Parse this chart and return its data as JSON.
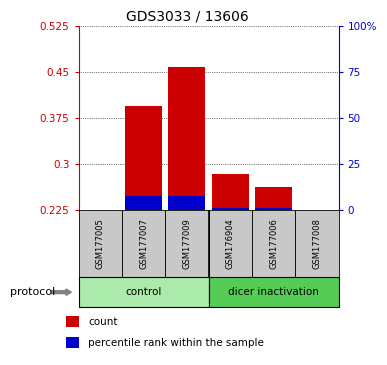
{
  "title": "GDS3033 / 13606",
  "samples": [
    "GSM177005",
    "GSM177007",
    "GSM177009",
    "GSM176904",
    "GSM177006",
    "GSM177008"
  ],
  "groups": [
    {
      "name": "control",
      "color": "#90EE90"
    },
    {
      "name": "dicer inactivation",
      "color": "#55CC55"
    }
  ],
  "red_values": [
    0.225,
    0.395,
    0.458,
    0.283,
    0.263,
    0.225
  ],
  "blue_values": [
    0.225,
    0.248,
    0.248,
    0.228,
    0.228,
    0.225
  ],
  "ylim_left": [
    0.225,
    0.525
  ],
  "ylim_right": [
    0,
    100
  ],
  "yticks_left": [
    0.225,
    0.3,
    0.375,
    0.45,
    0.525
  ],
  "ytick_labels_left": [
    "0.225",
    "0.3",
    "0.375",
    "0.45",
    "0.525"
  ],
  "yticks_right": [
    0,
    25,
    50,
    75,
    100
  ],
  "ytick_labels_right": [
    "0",
    "25",
    "50",
    "75",
    "100%"
  ],
  "bar_bottom": 0.225,
  "bar_width": 0.85,
  "left_tick_color": "#CC0000",
  "right_tick_color": "#0000CC",
  "red_bar_color": "#CC0000",
  "blue_bar_color": "#0000CC",
  "protocol_label": "protocol",
  "legend_count": "count",
  "legend_percentile": "percentile rank within the sample",
  "sample_bg_color": "#C8C8C8",
  "control_bg_color": "#AAEAAA",
  "dicer_bg_color": "#55CC55",
  "n_control": 3,
  "n_dicer": 3
}
